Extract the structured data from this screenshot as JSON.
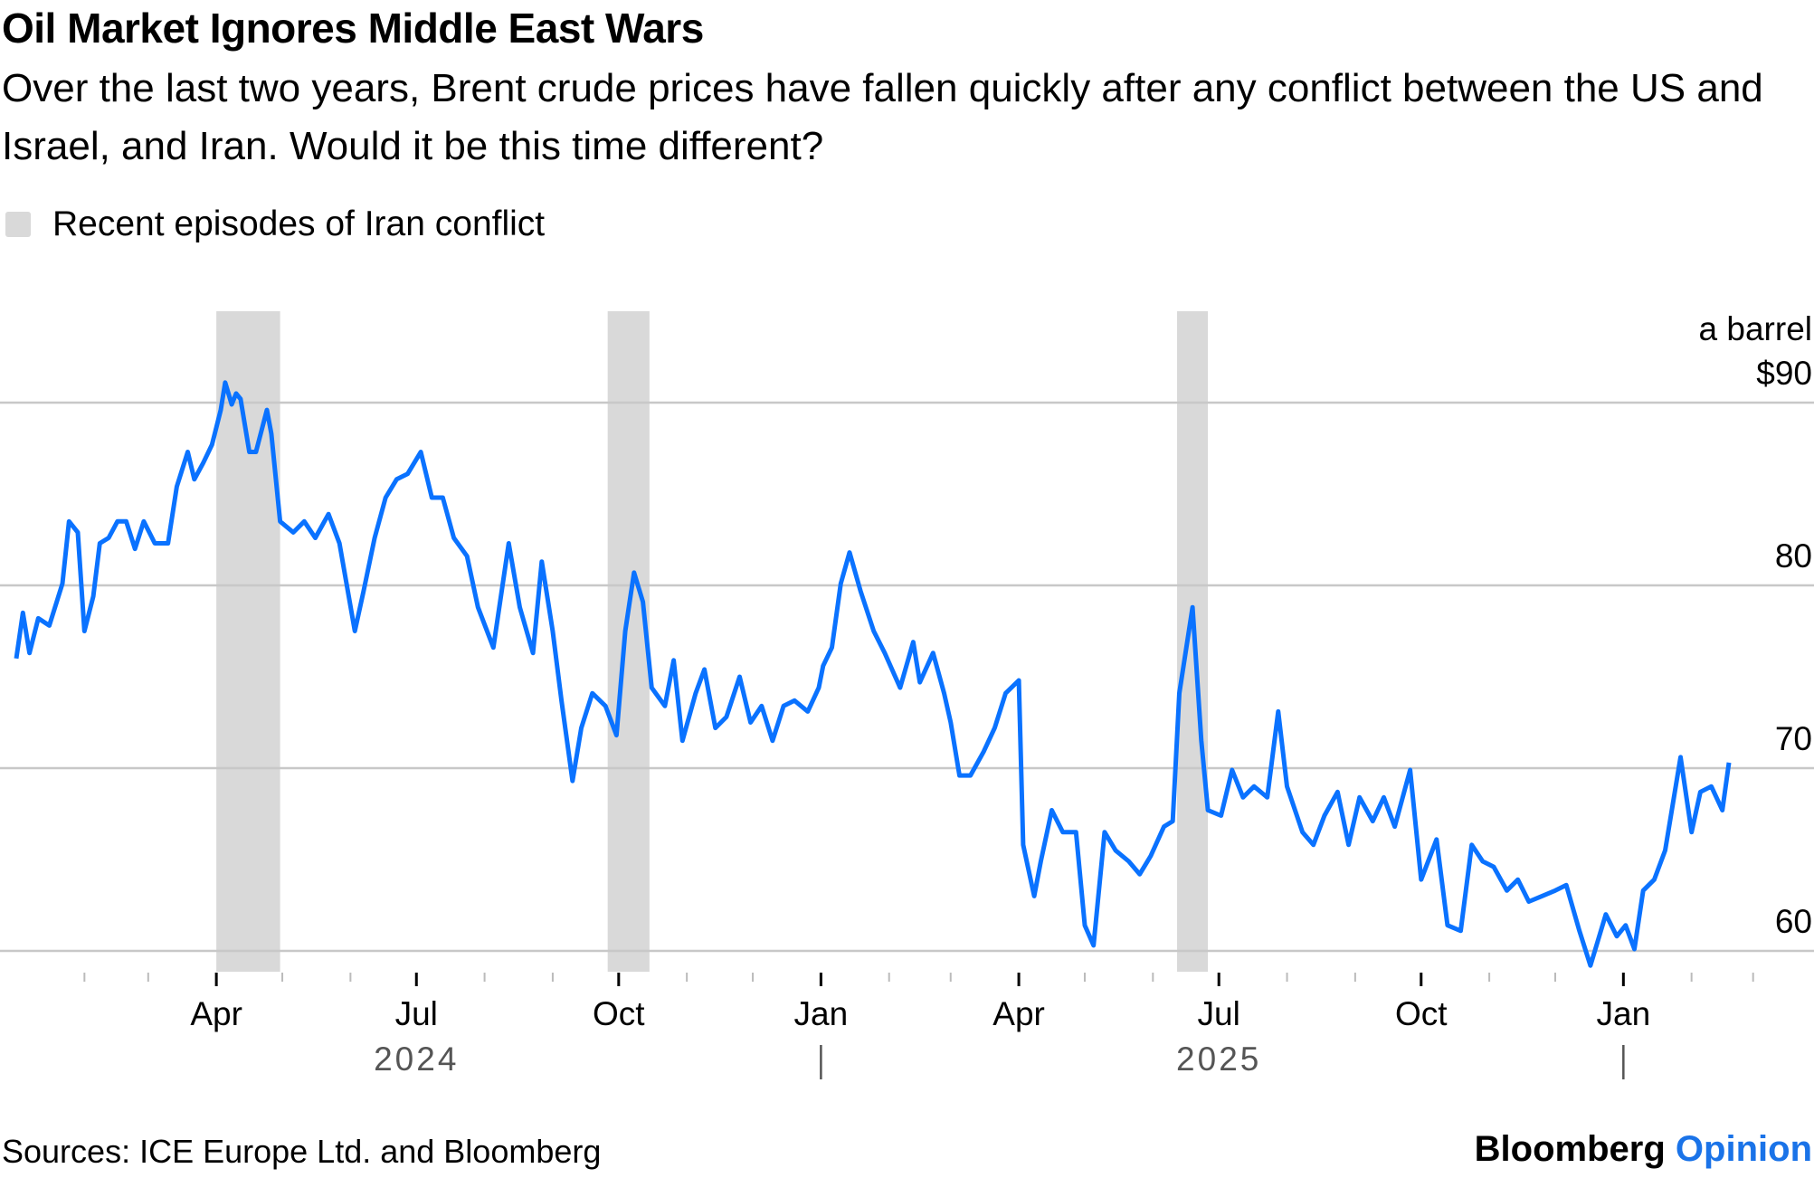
{
  "chart_data": {
    "type": "line",
    "title": "Oil Market Ignores Middle East Wars",
    "subtitle": "Over the last two years, Brent crude prices have fallen quickly after any conflict between the US and Israel, and Iran. Would it be this time different?",
    "legend": [
      {
        "label": "Recent episodes of Iran conflict",
        "color": "#d9d9d9",
        "type": "shaded-band"
      }
    ],
    "y_unit_label": "a barrel",
    "yticks": [
      {
        "value": 90,
        "label": "$90"
      },
      {
        "value": 80,
        "label": "80"
      },
      {
        "value": 70,
        "label": "70"
      },
      {
        "value": 60,
        "label": "60"
      }
    ],
    "ylim": [
      59,
      93
    ],
    "grid": true,
    "xlim": [
      "2024-01-01",
      "2026-02-28"
    ],
    "xticks_major": [
      {
        "date": "2024-04-01",
        "label": "Apr"
      },
      {
        "date": "2024-07-01",
        "label": "Jul"
      },
      {
        "date": "2024-10-01",
        "label": "Oct"
      },
      {
        "date": "2025-01-01",
        "label": "Jan"
      },
      {
        "date": "2025-04-01",
        "label": "Apr"
      },
      {
        "date": "2025-07-01",
        "label": "Jul"
      },
      {
        "date": "2025-10-01",
        "label": "Oct"
      },
      {
        "date": "2026-01-01",
        "label": "Jan"
      }
    ],
    "year_labels": [
      {
        "date": "2024-07-01",
        "label": "2024"
      },
      {
        "date": "2025-07-01",
        "label": "2025"
      }
    ],
    "year_dividers": [
      "2025-01-01",
      "2026-01-01"
    ],
    "bands": [
      {
        "start": "2024-04-01",
        "end": "2024-04-30"
      },
      {
        "start": "2024-09-26",
        "end": "2024-10-15"
      },
      {
        "start": "2025-06-12",
        "end": "2025-06-26"
      }
    ],
    "line_color": "#0a72ff",
    "series": [
      {
        "x": [
          "2024-01-01",
          "2024-01-04",
          "2024-01-07",
          "2024-01-11",
          "2024-01-16",
          "2024-01-22",
          "2024-01-25",
          "2024-01-29",
          "2024-02-01",
          "2024-02-05",
          "2024-02-08",
          "2024-02-12",
          "2024-02-16",
          "2024-02-20",
          "2024-02-24",
          "2024-02-28",
          "2024-03-04",
          "2024-03-10",
          "2024-03-14",
          "2024-03-19",
          "2024-03-22",
          "2024-03-26",
          "2024-03-30",
          "2024-04-03",
          "2024-04-05",
          "2024-04-08",
          "2024-04-10",
          "2024-04-12",
          "2024-04-16",
          "2024-04-19",
          "2024-04-24",
          "2024-04-26",
          "2024-04-30",
          "2024-05-06",
          "2024-05-11",
          "2024-05-16",
          "2024-05-22",
          "2024-05-27",
          "2024-06-03",
          "2024-06-07",
          "2024-06-12",
          "2024-06-17",
          "2024-06-22",
          "2024-06-27",
          "2024-07-03",
          "2024-07-08",
          "2024-07-13",
          "2024-07-18",
          "2024-07-24",
          "2024-07-29",
          "2024-08-05",
          "2024-08-12",
          "2024-08-17",
          "2024-08-23",
          "2024-08-27",
          "2024-09-01",
          "2024-09-05",
          "2024-09-10",
          "2024-09-14",
          "2024-09-19",
          "2024-09-25",
          "2024-09-30",
          "2024-10-04",
          "2024-10-08",
          "2024-10-12",
          "2024-10-16",
          "2024-10-22",
          "2024-10-26",
          "2024-10-30",
          "2024-11-05",
          "2024-11-09",
          "2024-11-14",
          "2024-11-19",
          "2024-11-25",
          "2024-11-30",
          "2024-12-05",
          "2024-12-10",
          "2024-12-15",
          "2024-12-20",
          "2024-12-26",
          "2024-12-31",
          "2025-01-02",
          "2025-01-06",
          "2025-01-10",
          "2025-01-14",
          "2025-01-19",
          "2025-01-25",
          "2025-01-30",
          "2025-02-06",
          "2025-02-12",
          "2025-02-15",
          "2025-02-21",
          "2025-02-26",
          "2025-03-01",
          "2025-03-05",
          "2025-03-10",
          "2025-03-16",
          "2025-03-21",
          "2025-03-26",
          "2025-04-01",
          "2025-04-03",
          "2025-04-08",
          "2025-04-11",
          "2025-04-16",
          "2025-04-21",
          "2025-04-27",
          "2025-05-01",
          "2025-05-05",
          "2025-05-10",
          "2025-05-15",
          "2025-05-21",
          "2025-05-26",
          "2025-05-31",
          "2025-06-06",
          "2025-06-10",
          "2025-06-13",
          "2025-06-19",
          "2025-06-23",
          "2025-06-26",
          "2025-07-02",
          "2025-07-07",
          "2025-07-12",
          "2025-07-17",
          "2025-07-23",
          "2025-07-28",
          "2025-08-01",
          "2025-08-08",
          "2025-08-13",
          "2025-08-18",
          "2025-08-24",
          "2025-08-29",
          "2025-09-03",
          "2025-09-09",
          "2025-09-14",
          "2025-09-19",
          "2025-09-26",
          "2025-10-01",
          "2025-10-08",
          "2025-10-13",
          "2025-10-19",
          "2025-10-24",
          "2025-10-29",
          "2025-11-03",
          "2025-11-09",
          "2025-11-14",
          "2025-11-19",
          "2025-11-25",
          "2025-12-01",
          "2025-12-06",
          "2025-12-12",
          "2025-12-17",
          "2025-12-24",
          "2025-12-29",
          "2026-01-02",
          "2026-01-06",
          "2026-01-10",
          "2026-01-15",
          "2026-01-20",
          "2026-01-27",
          "2026-02-01",
          "2026-02-05",
          "2026-02-10",
          "2026-02-15",
          "2026-02-18"
        ],
        "y": [
          76.0,
          78.5,
          76.3,
          78.2,
          77.8,
          80.1,
          83.5,
          82.9,
          77.5,
          79.4,
          82.3,
          82.6,
          83.5,
          83.5,
          82.0,
          83.5,
          82.3,
          82.3,
          85.4,
          87.3,
          85.8,
          86.7,
          87.7,
          89.6,
          91.1,
          89.9,
          90.5,
          90.2,
          87.3,
          87.3,
          89.6,
          88.3,
          83.5,
          82.9,
          83.5,
          82.6,
          83.9,
          82.3,
          77.5,
          79.7,
          82.6,
          84.8,
          85.8,
          86.1,
          87.3,
          84.8,
          84.8,
          82.6,
          81.6,
          78.8,
          76.6,
          82.3,
          78.8,
          76.3,
          81.3,
          77.5,
          73.7,
          69.3,
          72.2,
          74.1,
          73.4,
          71.8,
          77.5,
          80.7,
          79.1,
          74.4,
          73.4,
          75.9,
          71.5,
          74.1,
          75.4,
          72.2,
          72.8,
          75.0,
          72.5,
          73.4,
          71.5,
          73.4,
          73.7,
          73.1,
          74.4,
          75.6,
          76.6,
          80.1,
          81.8,
          79.7,
          77.5,
          76.3,
          74.4,
          76.9,
          74.7,
          76.3,
          74.1,
          72.5,
          69.6,
          69.6,
          70.9,
          72.2,
          74.1,
          74.8,
          65.8,
          63.0,
          64.9,
          67.7,
          66.5,
          66.5,
          61.4,
          60.3,
          66.5,
          65.5,
          64.9,
          64.2,
          65.2,
          66.8,
          67.1,
          74.1,
          78.8,
          71.5,
          67.7,
          67.4,
          69.9,
          68.4,
          69.0,
          68.4,
          73.1,
          69.0,
          66.5,
          65.8,
          67.4,
          68.7,
          65.8,
          68.4,
          67.1,
          68.4,
          66.8,
          69.9,
          63.9,
          66.1,
          61.4,
          61.1,
          65.8,
          64.9,
          64.6,
          63.3,
          63.9,
          62.7,
          63.0,
          63.3,
          63.6,
          61.1,
          59.2,
          62.0,
          60.8,
          61.4,
          60.1,
          63.3,
          63.9,
          65.5,
          70.6,
          66.5,
          68.7,
          69.0,
          67.7,
          70.3
        ]
      }
    ]
  },
  "source": "Sources: ICE Europe Ltd. and Bloomberg",
  "brand": {
    "name": "Bloomberg",
    "suffix": "Opinion"
  }
}
